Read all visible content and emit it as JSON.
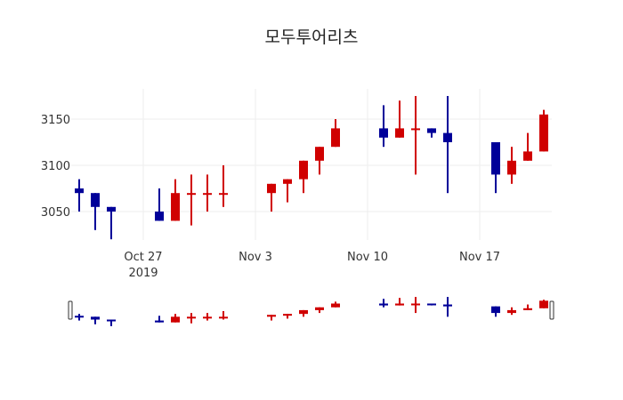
{
  "chart_data": {
    "type": "candlestick",
    "title": "모두투어리츠",
    "xlabel": "",
    "ylabel": "",
    "ylim": [
      3010,
      3185
    ],
    "yticks": [
      3050,
      3100,
      3150
    ],
    "xtick_labels": [
      {
        "date": "2019-10-27",
        "label": "Oct 27",
        "sublabel": "2019"
      },
      {
        "date": "2019-11-03",
        "label": "Nov 3",
        "sublabel": ""
      },
      {
        "date": "2019-11-10",
        "label": "Nov 10",
        "sublabel": ""
      },
      {
        "date": "2019-11-17",
        "label": "Nov 17",
        "sublabel": ""
      }
    ],
    "grid": true,
    "rangeslider": true,
    "increasing_color": "#d00000",
    "decreasing_color": "#000099",
    "candles": [
      {
        "date": "2019-10-23",
        "open": 3075,
        "high": 3085,
        "low": 3050,
        "close": 3070
      },
      {
        "date": "2019-10-24",
        "open": 3070,
        "high": 3070,
        "low": 3030,
        "close": 3055
      },
      {
        "date": "2019-10-25",
        "open": 3055,
        "high": 3055,
        "low": 3020,
        "close": 3050
      },
      {
        "date": "2019-10-28",
        "open": 3050,
        "high": 3075,
        "low": 3040,
        "close": 3040
      },
      {
        "date": "2019-10-29",
        "open": 3040,
        "high": 3085,
        "low": 3040,
        "close": 3070
      },
      {
        "date": "2019-10-30",
        "open": 3070,
        "high": 3090,
        "low": 3035,
        "close": 3070
      },
      {
        "date": "2019-10-31",
        "open": 3070,
        "high": 3090,
        "low": 3050,
        "close": 3070
      },
      {
        "date": "2019-11-01",
        "open": 3070,
        "high": 3100,
        "low": 3055,
        "close": 3070
      },
      {
        "date": "2019-11-04",
        "open": 3070,
        "high": 3080,
        "low": 3050,
        "close": 3080
      },
      {
        "date": "2019-11-05",
        "open": 3080,
        "high": 3085,
        "low": 3060,
        "close": 3085
      },
      {
        "date": "2019-11-06",
        "open": 3085,
        "high": 3105,
        "low": 3070,
        "close": 3105
      },
      {
        "date": "2019-11-07",
        "open": 3105,
        "high": 3120,
        "low": 3090,
        "close": 3120
      },
      {
        "date": "2019-11-08",
        "open": 3120,
        "high": 3150,
        "low": 3120,
        "close": 3140
      },
      {
        "date": "2019-11-11",
        "open": 3140,
        "high": 3165,
        "low": 3120,
        "close": 3130
      },
      {
        "date": "2019-11-12",
        "open": 3130,
        "high": 3170,
        "low": 3130,
        "close": 3140
      },
      {
        "date": "2019-11-13",
        "open": 3140,
        "high": 3175,
        "low": 3090,
        "close": 3140
      },
      {
        "date": "2019-11-14",
        "open": 3140,
        "high": 3140,
        "low": 3130,
        "close": 3135
      },
      {
        "date": "2019-11-15",
        "open": 3135,
        "high": 3175,
        "low": 3070,
        "close": 3125
      },
      {
        "date": "2019-11-18",
        "open": 3125,
        "high": 3125,
        "low": 3070,
        "close": 3090
      },
      {
        "date": "2019-11-19",
        "open": 3090,
        "high": 3120,
        "low": 3080,
        "close": 3105
      },
      {
        "date": "2019-11-20",
        "open": 3105,
        "high": 3135,
        "low": 3105,
        "close": 3115
      },
      {
        "date": "2019-11-21",
        "open": 3115,
        "high": 3160,
        "low": 3115,
        "close": 3155
      }
    ]
  }
}
